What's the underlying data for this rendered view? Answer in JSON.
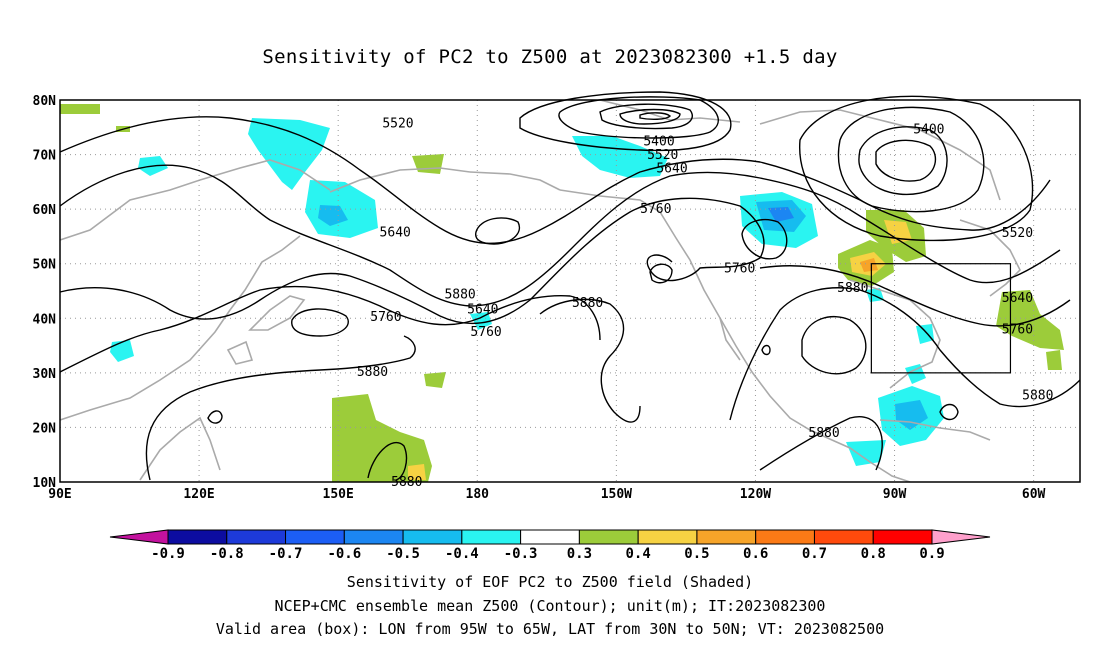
{
  "title": "Sensitivity of PC2 to Z500 at 2023082300 +1.5 day",
  "map": {
    "lat_labels": [
      "80N",
      "70N",
      "60N",
      "50N",
      "40N",
      "30N",
      "20N",
      "10N"
    ],
    "lon_labels": [
      "90E",
      "120E",
      "150E",
      "180",
      "150W",
      "120W",
      "90W",
      "60W"
    ],
    "contour_labels": [
      {
        "text": "5520",
        "lon": 162.9,
        "lat": 75.9
      },
      {
        "text": "5640",
        "lon": 162.3,
        "lat": 55.9
      },
      {
        "text": "5880",
        "lon": 176.3,
        "lat": 44.5
      },
      {
        "text": "5760",
        "lon": 160.3,
        "lat": 40.4
      },
      {
        "text": "5880",
        "lon": 157.4,
        "lat": 30.3
      },
      {
        "text": "5880",
        "lon": 164.8,
        "lat": 10.2
      },
      {
        "text": "5640",
        "lon": -178.8,
        "lat": 41.8
      },
      {
        "text": "5760",
        "lon": -178.1,
        "lat": 37.7
      },
      {
        "text": "5400",
        "lon": -140.8,
        "lat": 72.6
      },
      {
        "text": "5520",
        "lon": -140.0,
        "lat": 70.1
      },
      {
        "text": "5640",
        "lon": -138.0,
        "lat": 67.6
      },
      {
        "text": "5760",
        "lon": -141.5,
        "lat": 60.2
      },
      {
        "text": "5880",
        "lon": -156.2,
        "lat": 43.0
      },
      {
        "text": "5760",
        "lon": -123.4,
        "lat": 49.3
      },
      {
        "text": "5880",
        "lon": -99.0,
        "lat": 45.7
      },
      {
        "text": "5880",
        "lon": -105.2,
        "lat": 19.2
      },
      {
        "text": "5400",
        "lon": -82.6,
        "lat": 74.8
      },
      {
        "text": "5520",
        "lon": -63.5,
        "lat": 55.8
      },
      {
        "text": "5640",
        "lon": -63.5,
        "lat": 43.9
      },
      {
        "text": "5760",
        "lon": -63.5,
        "lat": 38.1
      },
      {
        "text": "5880",
        "lon": -59.1,
        "lat": 26.0
      }
    ]
  },
  "valid_box": {
    "lon_min": -95,
    "lon_max": -65,
    "lat_min": 30,
    "lat_max": 50
  },
  "colorbar": {
    "labels": [
      "-0.9",
      "-0.8",
      "-0.7",
      "-0.6",
      "-0.5",
      "-0.4",
      "-0.3",
      "0.3",
      "0.4",
      "0.5",
      "0.6",
      "0.7",
      "0.8",
      "0.9"
    ],
    "colors": {
      "lt_minus09": "#c3129e",
      "m09_m08": "#0c0ca0",
      "m08_m07": "#1d3ad9",
      "m07_m06": "#1c5ef5",
      "m06_m05": "#1c86f2",
      "m05_m04": "#16bcef",
      "m04_m03": "#2af4f1",
      "m03_p03": "#ffffff",
      "p03_p04": "#9ccc3a",
      "p04_p05": "#f6d243",
      "p05_p06": "#f6a429",
      "p06_p07": "#fb7a16",
      "p07_p08": "#ff4a0c",
      "p08_p09": "#ff0000",
      "gt_09": "#ffa0cc"
    }
  },
  "captions": [
    "Sensitivity of EOF PC2 to Z500 field (Shaded)",
    "NCEP+CMC ensemble mean Z500 (Contour); unit(m); IT:2023082300",
    "Valid area (box): LON from 95W to 65W, LAT from 30N to 50N; VT: 2023082500"
  ]
}
